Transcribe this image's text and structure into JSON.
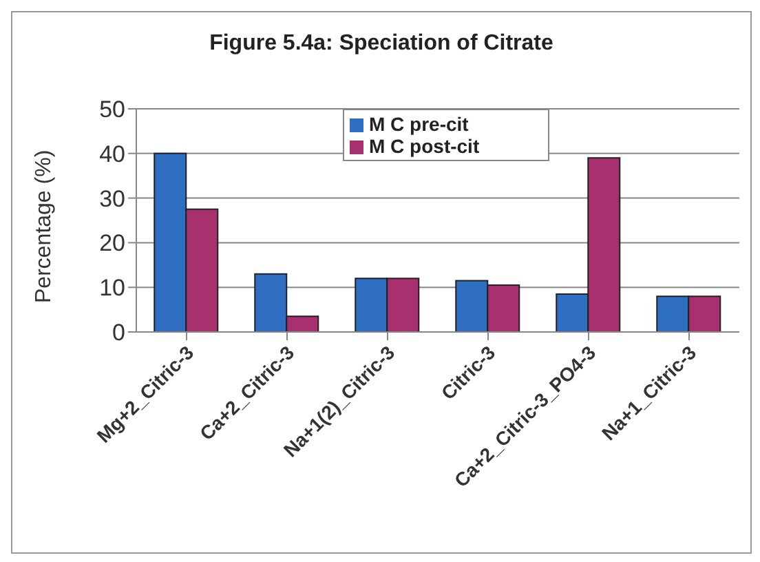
{
  "chart_data": {
    "type": "bar",
    "title": "Figure 5.4a: Speciation of Citrate",
    "ylabel": "Percentage (%)",
    "categories": [
      "Mg+2_Citric-3",
      "Ca+2_Citric-3",
      "Na+1(2)_Citric-3",
      "Citric-3",
      "Ca+2_Citric-3_PO4-3",
      "Na+1_Citric-3"
    ],
    "series": [
      {
        "name": "M C pre-cit",
        "color": "#2e6fc4",
        "values": [
          40,
          13,
          12,
          11.5,
          8.5,
          8
        ]
      },
      {
        "name": "M C post-cit",
        "color": "#a8306e",
        "values": [
          27.5,
          3.5,
          12,
          10.5,
          39,
          8
        ]
      }
    ],
    "ylim": [
      0,
      50
    ],
    "yticks": [
      0,
      10,
      20,
      30,
      40,
      50
    ],
    "grid": "y",
    "legend": "top"
  }
}
